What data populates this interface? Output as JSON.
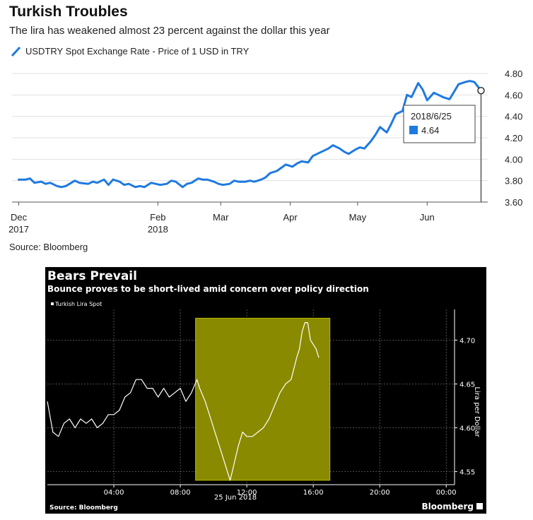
{
  "chart_data": [
    {
      "type": "line",
      "title": "Turkish Troubles",
      "subtitle": "The lira has weakened almost 23 percent against the dollar this year",
      "series": [
        {
          "name": "USDTRY Spot Exchange Rate - Price of 1 USD in TRY",
          "values": [
            [
              "2017-12-01",
              3.81
            ],
            [
              "2017-12-04",
              3.81
            ],
            [
              "2017-12-06",
              3.82
            ],
            [
              "2017-12-08",
              3.78
            ],
            [
              "2017-12-11",
              3.79
            ],
            [
              "2017-12-13",
              3.77
            ],
            [
              "2017-12-15",
              3.78
            ],
            [
              "2017-12-18",
              3.75
            ],
            [
              "2017-12-20",
              3.74
            ],
            [
              "2017-12-22",
              3.75
            ],
            [
              "2017-12-26",
              3.8
            ],
            [
              "2017-12-28",
              3.78
            ],
            [
              "2018-01-01",
              3.77
            ],
            [
              "2018-01-03",
              3.79
            ],
            [
              "2018-01-05",
              3.78
            ],
            [
              "2018-01-08",
              3.81
            ],
            [
              "2018-01-10",
              3.76
            ],
            [
              "2018-01-12",
              3.81
            ],
            [
              "2018-01-15",
              3.79
            ],
            [
              "2018-01-17",
              3.76
            ],
            [
              "2018-01-19",
              3.77
            ],
            [
              "2018-01-22",
              3.74
            ],
            [
              "2018-01-24",
              3.75
            ],
            [
              "2018-01-26",
              3.74
            ],
            [
              "2018-01-29",
              3.78
            ],
            [
              "2018-01-31",
              3.77
            ],
            [
              "2018-02-02",
              3.76
            ],
            [
              "2018-02-05",
              3.77
            ],
            [
              "2018-02-07",
              3.8
            ],
            [
              "2018-02-09",
              3.79
            ],
            [
              "2018-02-12",
              3.74
            ],
            [
              "2018-02-14",
              3.77
            ],
            [
              "2018-02-16",
              3.78
            ],
            [
              "2018-02-19",
              3.82
            ],
            [
              "2018-02-21",
              3.81
            ],
            [
              "2018-02-23",
              3.81
            ],
            [
              "2018-02-26",
              3.79
            ],
            [
              "2018-02-28",
              3.77
            ],
            [
              "2018-03-02",
              3.76
            ],
            [
              "2018-03-05",
              3.77
            ],
            [
              "2018-03-07",
              3.8
            ],
            [
              "2018-03-09",
              3.79
            ],
            [
              "2018-03-12",
              3.79
            ],
            [
              "2018-03-14",
              3.8
            ],
            [
              "2018-03-16",
              3.79
            ],
            [
              "2018-03-19",
              3.81
            ],
            [
              "2018-03-21",
              3.83
            ],
            [
              "2018-03-23",
              3.87
            ],
            [
              "2018-03-26",
              3.89
            ],
            [
              "2018-03-28",
              3.92
            ],
            [
              "2018-03-30",
              3.95
            ],
            [
              "2018-04-02",
              3.93
            ],
            [
              "2018-04-04",
              3.96
            ],
            [
              "2018-04-06",
              3.98
            ],
            [
              "2018-04-09",
              3.97
            ],
            [
              "2018-04-11",
              4.03
            ],
            [
              "2018-04-13",
              4.05
            ],
            [
              "2018-04-16",
              4.08
            ],
            [
              "2018-04-18",
              4.1
            ],
            [
              "2018-04-20",
              4.13
            ],
            [
              "2018-04-23",
              4.1
            ],
            [
              "2018-04-25",
              4.07
            ],
            [
              "2018-04-27",
              4.05
            ],
            [
              "2018-04-30",
              4.09
            ],
            [
              "2018-05-02",
              4.11
            ],
            [
              "2018-05-04",
              4.1
            ],
            [
              "2018-05-07",
              4.17
            ],
            [
              "2018-05-09",
              4.23
            ],
            [
              "2018-05-11",
              4.3
            ],
            [
              "2018-05-14",
              4.25
            ],
            [
              "2018-05-16",
              4.33
            ],
            [
              "2018-05-18",
              4.42
            ],
            [
              "2018-05-21",
              4.45
            ],
            [
              "2018-05-23",
              4.6
            ],
            [
              "2018-05-25",
              4.58
            ],
            [
              "2018-05-28",
              4.71
            ],
            [
              "2018-05-30",
              4.65
            ],
            [
              "2018-06-01",
              4.55
            ],
            [
              "2018-06-04",
              4.62
            ],
            [
              "2018-06-06",
              4.6
            ],
            [
              "2018-06-08",
              4.58
            ],
            [
              "2018-06-11",
              4.56
            ],
            [
              "2018-06-13",
              4.63
            ],
            [
              "2018-06-15",
              4.7
            ],
            [
              "2018-06-18",
              4.72
            ],
            [
              "2018-06-20",
              4.73
            ],
            [
              "2018-06-22",
              4.72
            ],
            [
              "2018-06-25",
              4.64
            ]
          ]
        }
      ],
      "x_ticks": [
        {
          "date": "2017-12-01",
          "line1": "Dec",
          "line2": "2017"
        },
        {
          "date": "2018-02-01",
          "line1": "Feb",
          "line2": "2018"
        },
        {
          "date": "2018-03-01",
          "line1": "Mar",
          "line2": ""
        },
        {
          "date": "2018-04-01",
          "line1": "Apr",
          "line2": ""
        },
        {
          "date": "2018-05-01",
          "line1": "May",
          "line2": ""
        },
        {
          "date": "2018-06-01",
          "line1": "Jun",
          "line2": ""
        }
      ],
      "y_ticks": [
        "3.60",
        "3.80",
        "4.00",
        "4.20",
        "4.40",
        "4.60",
        "4.80"
      ],
      "ylim": [
        3.6,
        4.8
      ],
      "xlim": [
        "2017-11-28",
        "2018-06-28"
      ],
      "tooltip": {
        "date": "2018-06-25",
        "label": "2018/6/25",
        "value": "4.64"
      },
      "source": "Source: Bloomberg",
      "grid": true,
      "legend_position": "top-left",
      "colors": {
        "line": "#1f7ae0",
        "grid": "#e0e0e0",
        "axis": "#555555"
      }
    },
    {
      "type": "line",
      "title": "Bears Prevail",
      "subtitle": "Bounce proves to be short-lived amid concern over policy direction",
      "series": [
        {
          "name": "Turkish Lira Spot",
          "values": [
            [
              "00:00",
              4.63
            ],
            [
              "00:20",
              4.595
            ],
            [
              "00:40",
              4.59
            ],
            [
              "01:00",
              4.605
            ],
            [
              "01:20",
              4.61
            ],
            [
              "01:40",
              4.6
            ],
            [
              "02:00",
              4.61
            ],
            [
              "02:20",
              4.605
            ],
            [
              "02:40",
              4.61
            ],
            [
              "03:00",
              4.6
            ],
            [
              "03:20",
              4.605
            ],
            [
              "03:40",
              4.615
            ],
            [
              "04:00",
              4.615
            ],
            [
              "04:20",
              4.62
            ],
            [
              "04:40",
              4.635
            ],
            [
              "05:00",
              4.64
            ],
            [
              "05:20",
              4.655
            ],
            [
              "05:40",
              4.655
            ],
            [
              "06:00",
              4.645
            ],
            [
              "06:20",
              4.645
            ],
            [
              "06:40",
              4.635
            ],
            [
              "07:00",
              4.645
            ],
            [
              "07:20",
              4.635
            ],
            [
              "07:40",
              4.64
            ],
            [
              "08:00",
              4.645
            ],
            [
              "08:20",
              4.63
            ],
            [
              "08:40",
              4.64
            ],
            [
              "09:00",
              4.655
            ],
            [
              "09:10",
              4.645
            ],
            [
              "09:30",
              4.63
            ],
            [
              "09:50",
              4.61
            ],
            [
              "10:10",
              4.59
            ],
            [
              "10:30",
              4.57
            ],
            [
              "10:45",
              4.555
            ],
            [
              "11:00",
              4.54
            ],
            [
              "11:15",
              4.56
            ],
            [
              "11:30",
              4.58
            ],
            [
              "11:45",
              4.595
            ],
            [
              "12:00",
              4.59
            ],
            [
              "12:20",
              4.59
            ],
            [
              "12:40",
              4.595
            ],
            [
              "13:00",
              4.6
            ],
            [
              "13:20",
              4.61
            ],
            [
              "13:40",
              4.625
            ],
            [
              "14:00",
              4.64
            ],
            [
              "14:20",
              4.65
            ],
            [
              "14:40",
              4.655
            ],
            [
              "15:00",
              4.68
            ],
            [
              "15:10",
              4.69
            ],
            [
              "15:20",
              4.71
            ],
            [
              "15:30",
              4.72
            ],
            [
              "15:40",
              4.72
            ],
            [
              "15:50",
              4.7
            ],
            [
              "16:00",
              4.695
            ],
            [
              "16:10",
              4.69
            ],
            [
              "16:20",
              4.68
            ]
          ]
        }
      ],
      "x_ticks": [
        "04:00",
        "08:00",
        "12:00",
        "16:00",
        "20:00",
        "00:00"
      ],
      "x_date_label": "25 Jun 2018",
      "y_ticks": [
        "4.55",
        "4.60",
        "4.65",
        "4.70"
      ],
      "ylim": [
        4.535,
        4.735
      ],
      "ylabel": "Lira per Dollar",
      "highlight": {
        "start": "08:55",
        "end": "17:00",
        "y_from": 4.54,
        "y_to": 4.725
      },
      "source": "Source: Bloomberg",
      "brand": "Bloomberg",
      "grid": true,
      "legend_position": "top-left",
      "colors": {
        "background": "#000000",
        "line": "#ffffff",
        "highlight": "#8a8a00",
        "grid": "#666666"
      }
    }
  ]
}
